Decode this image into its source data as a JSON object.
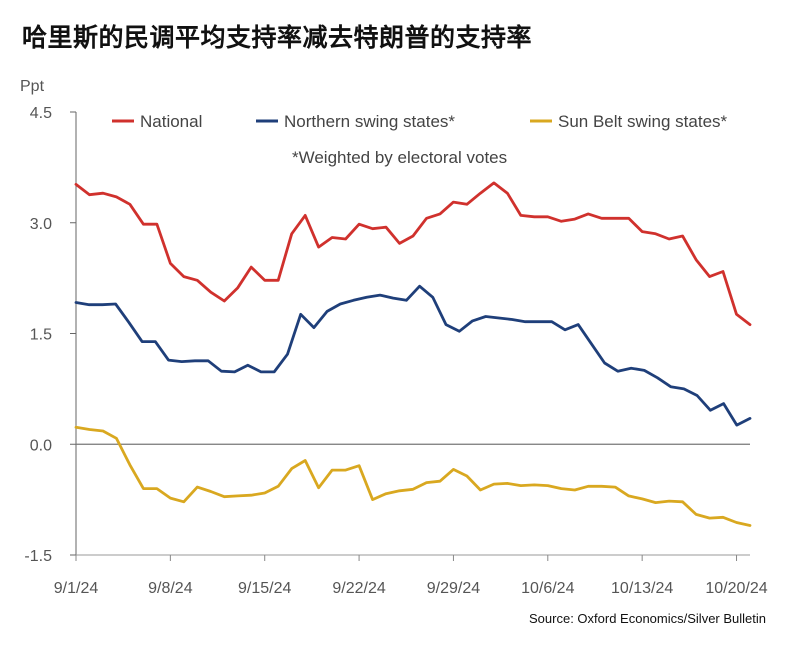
{
  "title": "哈里斯的民调平均支持率减去特朗普的支持率",
  "source": "Source: Oxford Economics/Silver Bulletin",
  "chart_data": {
    "type": "line",
    "ylabel": "Ppt",
    "ylim": [
      -1.5,
      4.5
    ],
    "yticks": [
      "4.5",
      "3.0",
      "1.5",
      "0.0",
      "-1.5"
    ],
    "ytick_values": [
      4.5,
      3.0,
      1.5,
      0.0,
      -1.5
    ],
    "xticks": [
      "9/1/24",
      "9/8/24",
      "9/15/24",
      "9/22/24",
      "9/29/24",
      "10/6/24",
      "10/13/24",
      "10/20/24"
    ],
    "xtick_days": [
      0,
      7,
      14,
      21,
      28,
      35,
      42,
      49
    ],
    "xlim_days": [
      0,
      50
    ],
    "note": "*Weighted by electoral votes",
    "series": [
      {
        "name": "National",
        "color": "#d0312d",
        "values": [
          3.52,
          3.38,
          3.4,
          3.35,
          3.25,
          2.98,
          2.98,
          2.45,
          2.27,
          2.22,
          2.06,
          1.94,
          2.12,
          2.4,
          2.22,
          2.22,
          2.85,
          3.1,
          2.67,
          2.8,
          2.78,
          2.98,
          2.92,
          2.94,
          2.72,
          2.82,
          3.06,
          3.12,
          3.28,
          3.25,
          3.4,
          3.54,
          3.4,
          3.1,
          3.08,
          3.08,
          3.02,
          3.05,
          3.12,
          3.06,
          3.06,
          3.06,
          2.88,
          2.85,
          2.78,
          2.82,
          2.5,
          2.27,
          2.34,
          1.76,
          1.62
        ]
      },
      {
        "name": "Northern swing states*",
        "color": "#1f3f7a",
        "values": [
          1.92,
          1.89,
          1.89,
          1.9,
          1.65,
          1.39,
          1.39,
          1.14,
          1.12,
          1.13,
          1.13,
          0.99,
          0.98,
          1.07,
          0.98,
          0.98,
          1.22,
          1.76,
          1.58,
          1.8,
          1.9,
          1.95,
          1.99,
          2.02,
          1.98,
          1.95,
          2.14,
          1.99,
          1.62,
          1.53,
          1.67,
          1.73,
          1.71,
          1.69,
          1.66,
          1.66,
          1.66,
          1.55,
          1.62,
          1.36,
          1.1,
          0.99,
          1.03,
          1.0,
          0.9,
          0.78,
          0.75,
          0.66,
          0.46,
          0.55,
          0.26,
          0.35
        ]
      },
      {
        "name": "Sun Belt swing states*",
        "color": "#d9a820",
        "values": [
          0.23,
          0.2,
          0.18,
          0.08,
          -0.28,
          -0.6,
          -0.6,
          -0.73,
          -0.78,
          -0.58,
          -0.64,
          -0.71,
          -0.7,
          -0.69,
          -0.66,
          -0.57,
          -0.33,
          -0.22,
          -0.59,
          -0.35,
          -0.35,
          -0.29,
          -0.75,
          -0.67,
          -0.63,
          -0.61,
          -0.52,
          -0.5,
          -0.34,
          -0.43,
          -0.62,
          -0.54,
          -0.53,
          -0.56,
          -0.55,
          -0.56,
          -0.6,
          -0.62,
          -0.57,
          -0.57,
          -0.58,
          -0.7,
          -0.74,
          -0.79,
          -0.77,
          -0.78,
          -0.95,
          -1.0,
          -0.99,
          -1.06,
          -1.1
        ]
      }
    ]
  }
}
